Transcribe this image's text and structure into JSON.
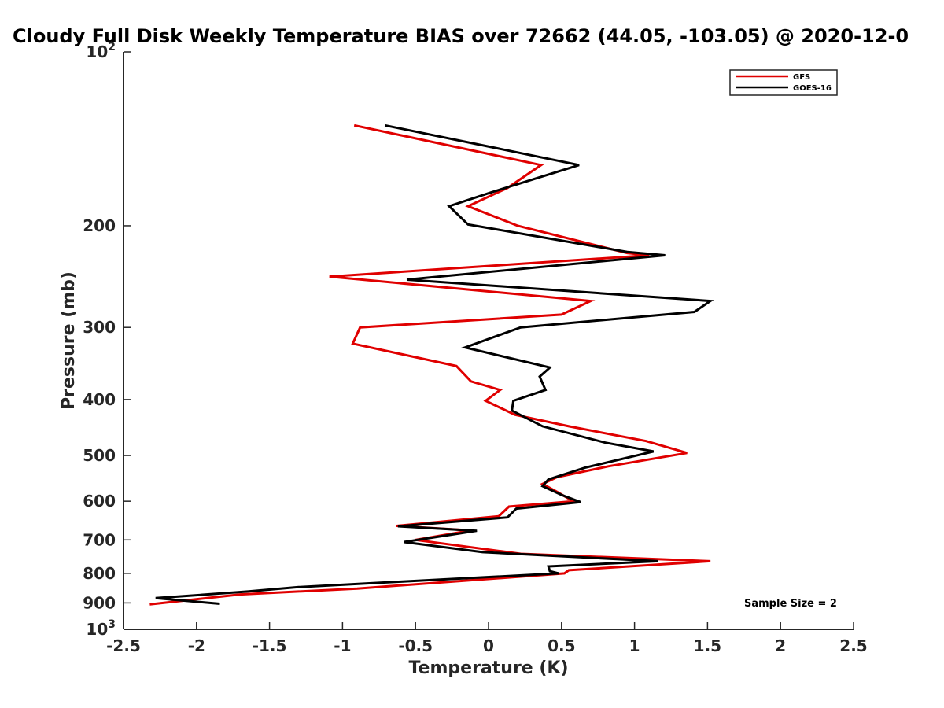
{
  "chart_data": {
    "type": "line",
    "title": "Cloudy Full Disk Weekly Temperature BIAS over 72662 (44.05, -103.05) @ 2020-12-0",
    "xlabel": "Temperature (K)",
    "ylabel": "Pressure (mb)",
    "xlim": [
      -2.5,
      2.5
    ],
    "ylim": [
      100,
      1000
    ],
    "y_scale": "log",
    "y_reversed": true,
    "xticks": [
      "-2.5",
      "-2",
      "-1.5",
      "-1",
      "-0.5",
      "0",
      "0.5",
      "1",
      "1.5",
      "2",
      "2.5"
    ],
    "xtick_values": [
      -2.5,
      -2,
      -1.5,
      -1,
      -0.5,
      0,
      0.5,
      1,
      1.5,
      2,
      2.5
    ],
    "yticks": [
      {
        "value": 100,
        "base": "10",
        "exp": "2"
      },
      {
        "value": 200,
        "label": "200"
      },
      {
        "value": 300,
        "label": "300"
      },
      {
        "value": 400,
        "label": "400"
      },
      {
        "value": 500,
        "label": "500"
      },
      {
        "value": 600,
        "label": "600"
      },
      {
        "value": 700,
        "label": "700"
      },
      {
        "value": 800,
        "label": "800"
      },
      {
        "value": 900,
        "label": "900"
      },
      {
        "value": 1000,
        "base": "10",
        "exp": "3"
      }
    ],
    "legend_position": "top-right",
    "grid": false,
    "annotation": "Sample Size = 2",
    "series": [
      {
        "name": "GFS",
        "color": "#e00000",
        "points": [
          [
            -0.92,
            134
          ],
          [
            0.36,
            157
          ],
          [
            0.13,
            172
          ],
          [
            -0.14,
            185
          ],
          [
            0.2,
            200
          ],
          [
            0.95,
            223
          ],
          [
            1.1,
            225
          ],
          [
            -1.09,
            245
          ],
          [
            0.7,
            270
          ],
          [
            0.5,
            285
          ],
          [
            -0.88,
            300
          ],
          [
            -0.93,
            320
          ],
          [
            -0.22,
            350
          ],
          [
            -0.12,
            372
          ],
          [
            0.08,
            385
          ],
          [
            -0.02,
            402
          ],
          [
            0.18,
            425
          ],
          [
            0.55,
            445
          ],
          [
            1.08,
            472
          ],
          [
            1.36,
            495
          ],
          [
            0.82,
            522
          ],
          [
            0.47,
            545
          ],
          [
            0.37,
            560
          ],
          [
            0.47,
            578
          ],
          [
            0.58,
            600
          ],
          [
            0.14,
            613
          ],
          [
            0.07,
            637
          ],
          [
            -0.63,
            662
          ],
          [
            -0.12,
            674
          ],
          [
            -0.5,
            700
          ],
          [
            0.22,
            740
          ],
          [
            1.52,
            762
          ],
          [
            0.55,
            790
          ],
          [
            0.52,
            800
          ],
          [
            -0.9,
            850
          ],
          [
            -1.7,
            870
          ],
          [
            -2.32,
            905
          ]
        ]
      },
      {
        "name": "GOES-16",
        "color": "#000000",
        "points": [
          [
            -0.71,
            134
          ],
          [
            0.62,
            157
          ],
          [
            0.02,
            175
          ],
          [
            -0.27,
            185
          ],
          [
            -0.14,
            199
          ],
          [
            0.95,
            222
          ],
          [
            1.21,
            225
          ],
          [
            -0.56,
            248
          ],
          [
            1.52,
            270
          ],
          [
            1.41,
            282
          ],
          [
            0.22,
            300
          ],
          [
            -0.16,
            325
          ],
          [
            0.42,
            352
          ],
          [
            0.35,
            365
          ],
          [
            0.39,
            385
          ],
          [
            0.17,
            402
          ],
          [
            0.16,
            418
          ],
          [
            0.37,
            445
          ],
          [
            0.8,
            475
          ],
          [
            1.13,
            492
          ],
          [
            0.66,
            525
          ],
          [
            0.41,
            550
          ],
          [
            0.37,
            565
          ],
          [
            0.5,
            585
          ],
          [
            0.63,
            602
          ],
          [
            0.19,
            618
          ],
          [
            0.13,
            640
          ],
          [
            -0.62,
            663
          ],
          [
            -0.08,
            675
          ],
          [
            -0.58,
            706
          ],
          [
            -0.04,
            735
          ],
          [
            1.16,
            762
          ],
          [
            0.41,
            778
          ],
          [
            0.42,
            793
          ],
          [
            0.48,
            800
          ],
          [
            -0.6,
            827
          ],
          [
            -1.3,
            845
          ],
          [
            -1.65,
            860
          ],
          [
            -2.28,
            883
          ],
          [
            -1.84,
            903
          ]
        ]
      }
    ]
  }
}
